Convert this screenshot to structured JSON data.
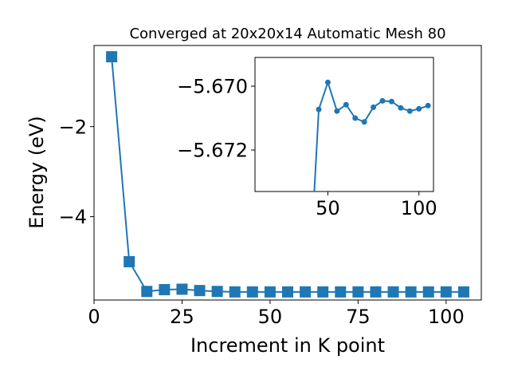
{
  "chart_data": [
    {
      "type": "line",
      "title": "Converged at 20x20x14 Automatic Mesh 80",
      "xlabel": "Increment in K point",
      "ylabel": "Energy (eV)",
      "xlim": [
        0,
        110
      ],
      "ylim": [
        -5.85,
        -0.2
      ],
      "xticks": [
        0,
        25,
        50,
        75,
        100
      ],
      "xtick_labels": [
        "0",
        "25",
        "50",
        "75",
        "100"
      ],
      "yticks": [
        -2,
        -4
      ],
      "ytick_labels": [
        "−2",
        "−4"
      ],
      "marker": "square",
      "grid": false,
      "series": [
        {
          "x": [
            5,
            10,
            15,
            20,
            25,
            30,
            35,
            40,
            45,
            50,
            55,
            60,
            65,
            70,
            75,
            80,
            85,
            90,
            95,
            100,
            105
          ],
          "y": [
            -0.45,
            -5.0,
            -5.66,
            -5.62,
            -5.61,
            -5.64,
            -5.66,
            -5.67,
            -5.67,
            -5.67,
            -5.67,
            -5.67,
            -5.67,
            -5.67,
            -5.67,
            -5.67,
            -5.67,
            -5.67,
            -5.67,
            -5.67,
            -5.67
          ]
        }
      ]
    },
    {
      "type": "line",
      "title": "",
      "xlabel": "",
      "ylabel": "",
      "xlim": [
        10,
        108
      ],
      "ylim": [
        -5.6733,
        -5.6691
      ],
      "xticks": [
        50,
        100
      ],
      "xtick_labels": [
        "50",
        "100"
      ],
      "yticks": [
        -5.672,
        -5.67
      ],
      "ytick_labels": [
        "−5.672",
        "−5.670"
      ],
      "marker": "circle",
      "grid": false,
      "series": [
        {
          "x": [
            40,
            45,
            50,
            55,
            60,
            65,
            70,
            75,
            80,
            85,
            90,
            95,
            100,
            105
          ],
          "y": [
            -5.676,
            -5.67073,
            -5.66988,
            -5.67078,
            -5.67058,
            -5.671,
            -5.67112,
            -5.67066,
            -5.67046,
            -5.67048,
            -5.67068,
            -5.67078,
            -5.67071,
            -5.67061
          ]
        }
      ]
    }
  ],
  "colors": {
    "series": "#1f77b4"
  }
}
